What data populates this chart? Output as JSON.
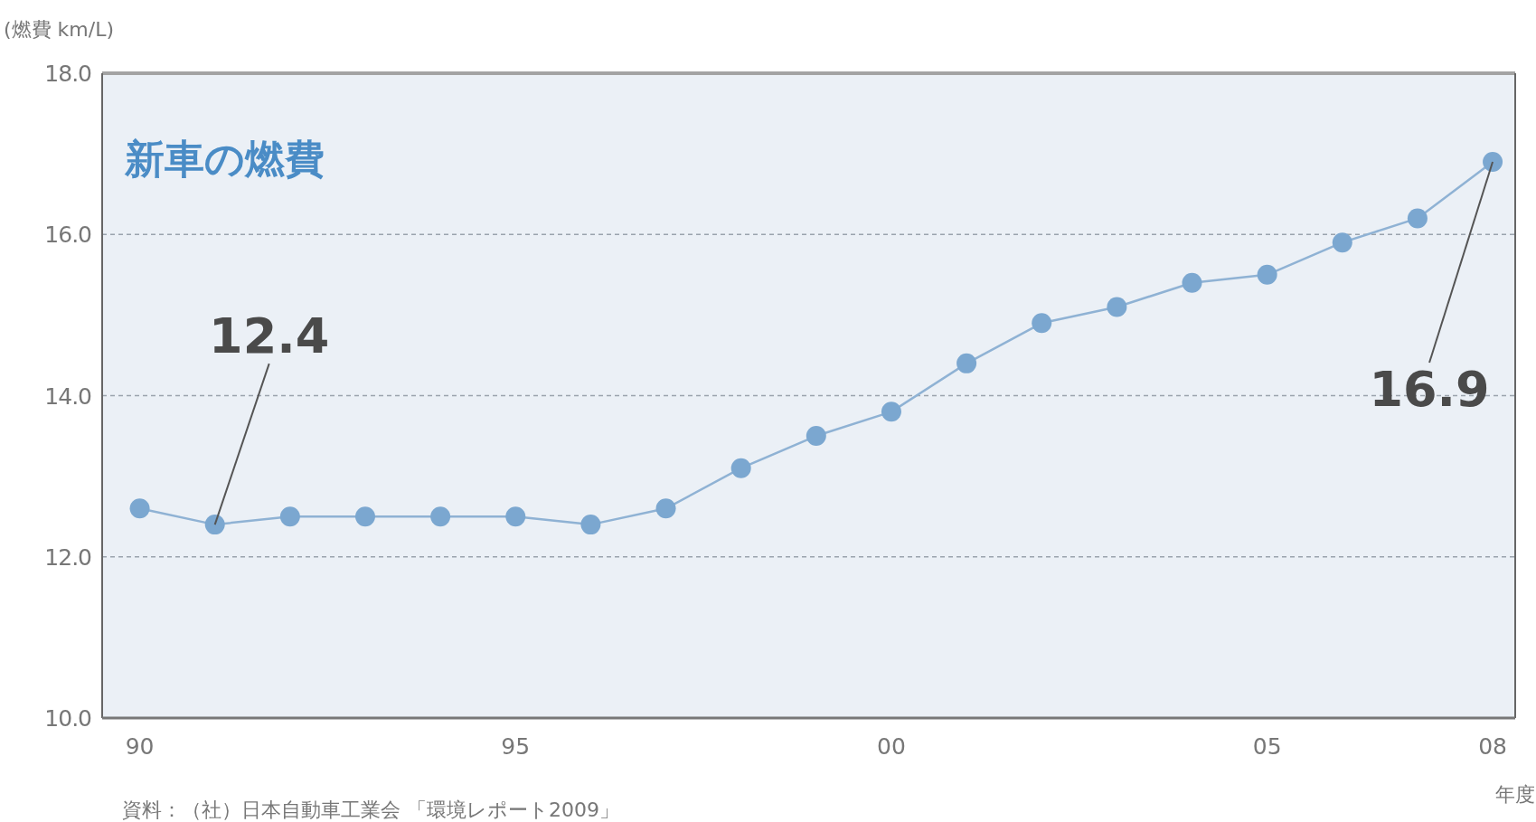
{
  "chart_data": {
    "type": "line",
    "title": "新車の燃費",
    "ylabel": "(燃費 km/L)",
    "xlabel": "年度",
    "x": [
      1990,
      1991,
      1992,
      1993,
      1994,
      1995,
      1996,
      1997,
      1998,
      1999,
      2000,
      2001,
      2002,
      2003,
      2004,
      2005,
      2006,
      2007,
      2008
    ],
    "series": [
      {
        "color": "#7ba7d0",
        "values": [
          12.6,
          12.4,
          12.5,
          12.5,
          12.5,
          12.5,
          12.4,
          12.6,
          13.1,
          13.5,
          13.8,
          14.4,
          14.9,
          15.1,
          15.4,
          15.5,
          15.9,
          16.2,
          16.9
        ]
      }
    ],
    "xlim": [
      1989.5,
      2008.3
    ],
    "xticks": [
      {
        "value": 1990,
        "label": "90"
      },
      {
        "value": 1995,
        "label": "95"
      },
      {
        "value": 2000,
        "label": "00"
      },
      {
        "value": 2005,
        "label": "05"
      },
      {
        "value": 2008,
        "label": "08"
      }
    ],
    "ylim": [
      10,
      18
    ],
    "yticks": [
      {
        "value": 10,
        "label": "10.0"
      },
      {
        "value": 12,
        "label": "12.0"
      },
      {
        "value": 14,
        "label": "14.0"
      },
      {
        "value": 16,
        "label": "16.0"
      },
      {
        "value": 18,
        "label": "18.0"
      }
    ],
    "grid": "y",
    "marker": "circle",
    "line_style": "solid",
    "annotations": [
      {
        "text": "12.4",
        "x": 1991,
        "y": 12.4
      },
      {
        "text": "16.9",
        "x": 2008,
        "y": 16.9
      },
      "資料：（社）日本自動車工業会 「環境レポート2009」"
    ]
  }
}
